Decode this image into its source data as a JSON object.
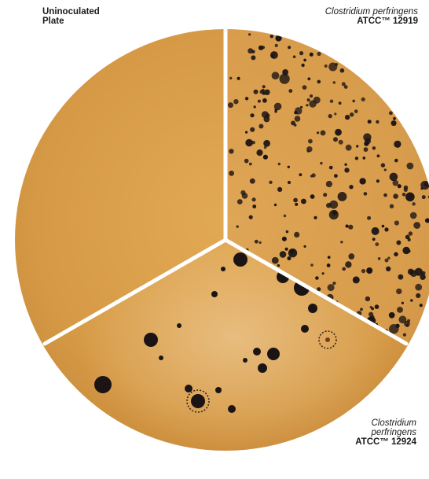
{
  "labels": {
    "uninoculated": {
      "line1": "Uninoculated",
      "line2": "Plate"
    },
    "atcc_12919": {
      "organism": "Clostridium perfringens",
      "code": "ATCC™ 12919"
    },
    "atcc_12924": {
      "organism_line1": "Clostridium",
      "organism_line2": "perfringens",
      "code": "ATCC™ 12924"
    }
  },
  "colors": {
    "agar": "#d99a43",
    "agar_shadow": "#c9883a",
    "colony": "#1c1414",
    "divider": "#ffffff",
    "background": "#ffffff"
  }
}
